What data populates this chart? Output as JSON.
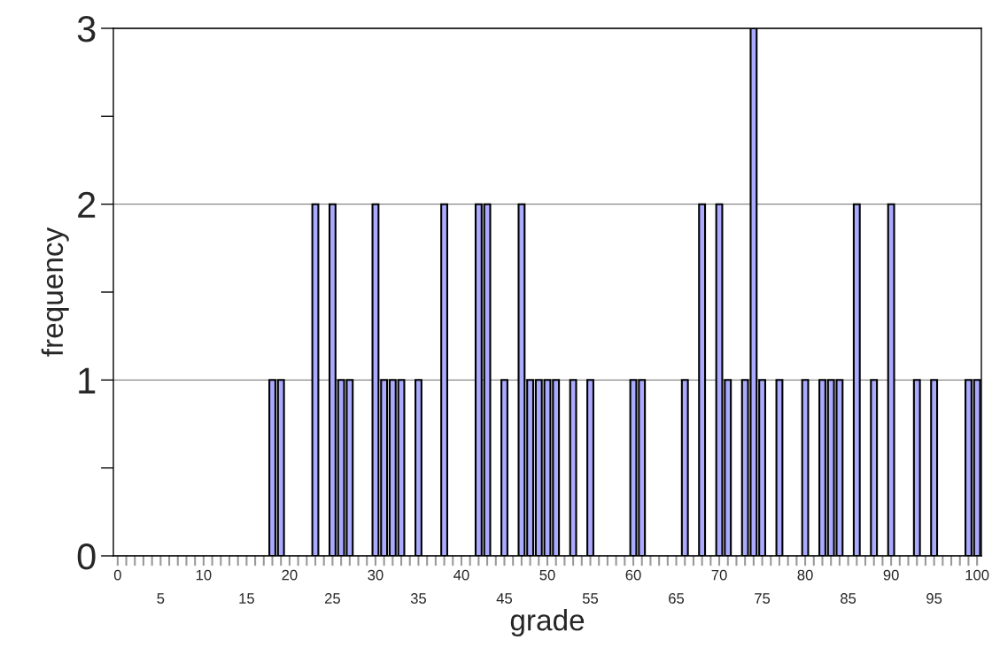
{
  "chart_data": {
    "type": "bar",
    "xlabel": "grade",
    "ylabel": "frequency",
    "categories": [
      "0",
      null,
      null,
      null,
      null,
      "5",
      null,
      null,
      null,
      null,
      "10",
      null,
      null,
      null,
      null,
      "15",
      null,
      null,
      null,
      null,
      "20",
      null,
      null,
      null,
      null,
      "25",
      null,
      null,
      null,
      null,
      "30",
      null,
      null,
      null,
      null,
      "35",
      null,
      null,
      null,
      null,
      "40",
      null,
      null,
      null,
      null,
      "45",
      null,
      null,
      null,
      null,
      "50",
      null,
      null,
      null,
      null,
      "55",
      null,
      null,
      null,
      null,
      "60",
      null,
      null,
      null,
      null,
      "65",
      null,
      null,
      null,
      null,
      "70",
      null,
      null,
      null,
      null,
      "75",
      null,
      null,
      null,
      null,
      "80",
      null,
      null,
      null,
      null,
      "85",
      null,
      null,
      null,
      null,
      "90",
      null,
      null,
      null,
      null,
      "95",
      null,
      null,
      null,
      null,
      "100"
    ],
    "values": [
      0,
      0,
      0,
      0,
      0,
      0,
      0,
      0,
      0,
      0,
      0,
      0,
      0,
      0,
      0,
      0,
      0,
      0,
      1,
      1,
      0,
      0,
      0,
      2,
      0,
      2,
      1,
      1,
      0,
      0,
      2,
      1,
      1,
      1,
      0,
      1,
      0,
      0,
      2,
      0,
      0,
      0,
      2,
      2,
      0,
      1,
      0,
      2,
      1,
      1,
      1,
      1,
      0,
      1,
      0,
      1,
      0,
      0,
      0,
      0,
      1,
      1,
      0,
      0,
      0,
      0,
      1,
      0,
      2,
      0,
      2,
      1,
      0,
      1,
      3,
      1,
      0,
      1,
      0,
      0,
      1,
      0,
      1,
      1,
      1,
      0,
      2,
      0,
      1,
      0,
      2,
      0,
      0,
      1,
      0,
      1,
      0,
      0,
      0,
      1,
      1
    ],
    "color": "#aaaaff",
    "ylim": [
      0,
      3
    ],
    "yticks": [
      0,
      {
        "value": 0.5,
        "label": null
      },
      1,
      {
        "value": 1.5,
        "label": null
      },
      2,
      {
        "value": 2.5,
        "label": null
      },
      3
    ],
    "grid": "y"
  }
}
